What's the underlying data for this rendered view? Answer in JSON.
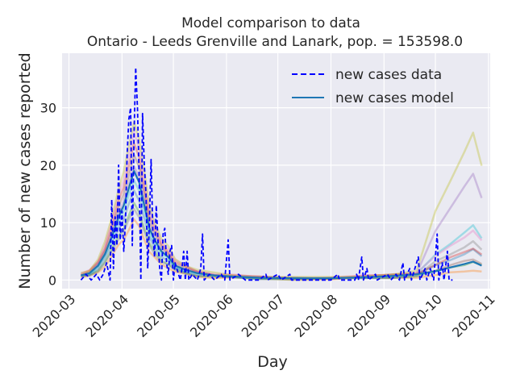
{
  "chart_data": {
    "type": "line",
    "title": "Model comparison to data",
    "subtitle": "Ontario - Leeds Grenville and Lanark, pop. = 153598.0",
    "xlabel": "Day",
    "ylabel": "Number of new cases reported",
    "x_range": [
      "2020-02-26",
      "2020-11-02"
    ],
    "ylim": [
      -1.5,
      39.5
    ],
    "x_ticks": [
      "2020-03",
      "2020-04",
      "2020-05",
      "2020-06",
      "2020-07",
      "2020-08",
      "2020-09",
      "2020-10",
      "2020-11"
    ],
    "y_ticks": [
      0,
      10,
      20,
      30
    ],
    "grid": true,
    "legend_position": "top-right",
    "legend": [
      "new cases data",
      "new cases model"
    ],
    "colors": {
      "background": "#eaeaf2",
      "data": "#0000ff",
      "model": "#1f77b4",
      "ensemble": [
        "#ff7f0e",
        "#2ca02c",
        "#1f77b4",
        "#17becf",
        "#9467bd",
        "#8c564b",
        "#d62728",
        "#e377c2",
        "#7f7f7f",
        "#bcbd22"
      ]
    },
    "series": [
      {
        "name": "new cases data",
        "style": "dashed",
        "points": [
          [
            "2020-03-08",
            0
          ],
          [
            "2020-03-11",
            1
          ],
          [
            "2020-03-14",
            0
          ],
          [
            "2020-03-17",
            1
          ],
          [
            "2020-03-19",
            0
          ],
          [
            "2020-03-21",
            1
          ],
          [
            "2020-03-23",
            3
          ],
          [
            "2020-03-25",
            0
          ],
          [
            "2020-03-26",
            14
          ],
          [
            "2020-03-27",
            2
          ],
          [
            "2020-03-28",
            11
          ],
          [
            "2020-03-29",
            6
          ],
          [
            "2020-03-30",
            20
          ],
          [
            "2020-03-31",
            7
          ],
          [
            "2020-04-01",
            12
          ],
          [
            "2020-04-02",
            5
          ],
          [
            "2020-04-03",
            10
          ],
          [
            "2020-04-04",
            22
          ],
          [
            "2020-04-05",
            28
          ],
          [
            "2020-04-06",
            30
          ],
          [
            "2020-04-07",
            6
          ],
          [
            "2020-04-08",
            25
          ],
          [
            "2020-04-09",
            37
          ],
          [
            "2020-04-10",
            30
          ],
          [
            "2020-04-11",
            18
          ],
          [
            "2020-04-12",
            0
          ],
          [
            "2020-04-13",
            29
          ],
          [
            "2020-04-14",
            20
          ],
          [
            "2020-04-15",
            15
          ],
          [
            "2020-04-16",
            2
          ],
          [
            "2020-04-17",
            10
          ],
          [
            "2020-04-18",
            21
          ],
          [
            "2020-04-19",
            8
          ],
          [
            "2020-04-20",
            4
          ],
          [
            "2020-04-21",
            13
          ],
          [
            "2020-04-22",
            7
          ],
          [
            "2020-04-23",
            2
          ],
          [
            "2020-04-24",
            0
          ],
          [
            "2020-04-25",
            8
          ],
          [
            "2020-04-26",
            9
          ],
          [
            "2020-04-27",
            3
          ],
          [
            "2020-04-28",
            1
          ],
          [
            "2020-04-29",
            5
          ],
          [
            "2020-04-30",
            6
          ],
          [
            "2020-05-01",
            0
          ],
          [
            "2020-05-02",
            3
          ],
          [
            "2020-05-03",
            2
          ],
          [
            "2020-05-04",
            1
          ],
          [
            "2020-05-05",
            0
          ],
          [
            "2020-05-06",
            2
          ],
          [
            "2020-05-07",
            5
          ],
          [
            "2020-05-08",
            0
          ],
          [
            "2020-05-09",
            5
          ],
          [
            "2020-05-10",
            0
          ],
          [
            "2020-05-12",
            1
          ],
          [
            "2020-05-15",
            0
          ],
          [
            "2020-05-17",
            2
          ],
          [
            "2020-05-18",
            8
          ],
          [
            "2020-05-19",
            0
          ],
          [
            "2020-05-22",
            1
          ],
          [
            "2020-05-25",
            0
          ],
          [
            "2020-05-29",
            1
          ],
          [
            "2020-05-31",
            0
          ],
          [
            "2020-06-02",
            7
          ],
          [
            "2020-06-03",
            0
          ],
          [
            "2020-06-08",
            1
          ],
          [
            "2020-06-12",
            0
          ],
          [
            "2020-06-20",
            0
          ],
          [
            "2020-06-24",
            1
          ],
          [
            "2020-06-25",
            0
          ],
          [
            "2020-07-01",
            1
          ],
          [
            "2020-07-03",
            0
          ],
          [
            "2020-07-08",
            1
          ],
          [
            "2020-07-09",
            0
          ],
          [
            "2020-07-20",
            0
          ],
          [
            "2020-08-01",
            0
          ],
          [
            "2020-08-05",
            1
          ],
          [
            "2020-08-06",
            0
          ],
          [
            "2020-08-15",
            0
          ],
          [
            "2020-08-16",
            1
          ],
          [
            "2020-08-17",
            0
          ],
          [
            "2020-08-19",
            4
          ],
          [
            "2020-08-20",
            0
          ],
          [
            "2020-08-22",
            2
          ],
          [
            "2020-08-23",
            0
          ],
          [
            "2020-08-27",
            1
          ],
          [
            "2020-08-28",
            0
          ],
          [
            "2020-09-03",
            1
          ],
          [
            "2020-09-05",
            0
          ],
          [
            "2020-09-08",
            1
          ],
          [
            "2020-09-10",
            0
          ],
          [
            "2020-09-12",
            3
          ],
          [
            "2020-09-13",
            0
          ],
          [
            "2020-09-16",
            2
          ],
          [
            "2020-09-17",
            0
          ],
          [
            "2020-09-20",
            3
          ],
          [
            "2020-09-21",
            4
          ],
          [
            "2020-09-22",
            0
          ],
          [
            "2020-09-25",
            2
          ],
          [
            "2020-09-26",
            0
          ],
          [
            "2020-09-28",
            2
          ],
          [
            "2020-09-30",
            0
          ],
          [
            "2020-10-02",
            8
          ],
          [
            "2020-10-03",
            0
          ],
          [
            "2020-10-05",
            3
          ],
          [
            "2020-10-06",
            0
          ],
          [
            "2020-10-08",
            5
          ],
          [
            "2020-10-09",
            0
          ],
          [
            "2020-10-11",
            0
          ]
        ]
      },
      {
        "name": "new cases model",
        "style": "solid",
        "points": [
          [
            "2020-03-08",
            0.8
          ],
          [
            "2020-03-13",
            1.2
          ],
          [
            "2020-03-18",
            2.5
          ],
          [
            "2020-03-22",
            4.5
          ],
          [
            "2020-03-26",
            7.5
          ],
          [
            "2020-03-30",
            11
          ],
          [
            "2020-04-02",
            13
          ],
          [
            "2020-04-05",
            16
          ],
          [
            "2020-04-08",
            19
          ],
          [
            "2020-04-11",
            17
          ],
          [
            "2020-04-14",
            13
          ],
          [
            "2020-04-17",
            9
          ],
          [
            "2020-04-20",
            7
          ],
          [
            "2020-04-24",
            5
          ],
          [
            "2020-04-28",
            4
          ],
          [
            "2020-05-02",
            2.5
          ],
          [
            "2020-05-08",
            1.8
          ],
          [
            "2020-05-15",
            1.2
          ],
          [
            "2020-05-25",
            0.8
          ],
          [
            "2020-06-05",
            0.6
          ],
          [
            "2020-06-20",
            0.4
          ],
          [
            "2020-07-10",
            0.3
          ],
          [
            "2020-08-01",
            0.3
          ],
          [
            "2020-08-20",
            0.5
          ],
          [
            "2020-09-05",
            0.7
          ],
          [
            "2020-09-20",
            1
          ],
          [
            "2020-10-01",
            1.5
          ],
          [
            "2020-10-10",
            2.2
          ],
          [
            "2020-10-18",
            2.8
          ],
          [
            "2020-10-23",
            3.2
          ],
          [
            "2020-10-28",
            2.5
          ]
        ]
      }
    ]
  }
}
